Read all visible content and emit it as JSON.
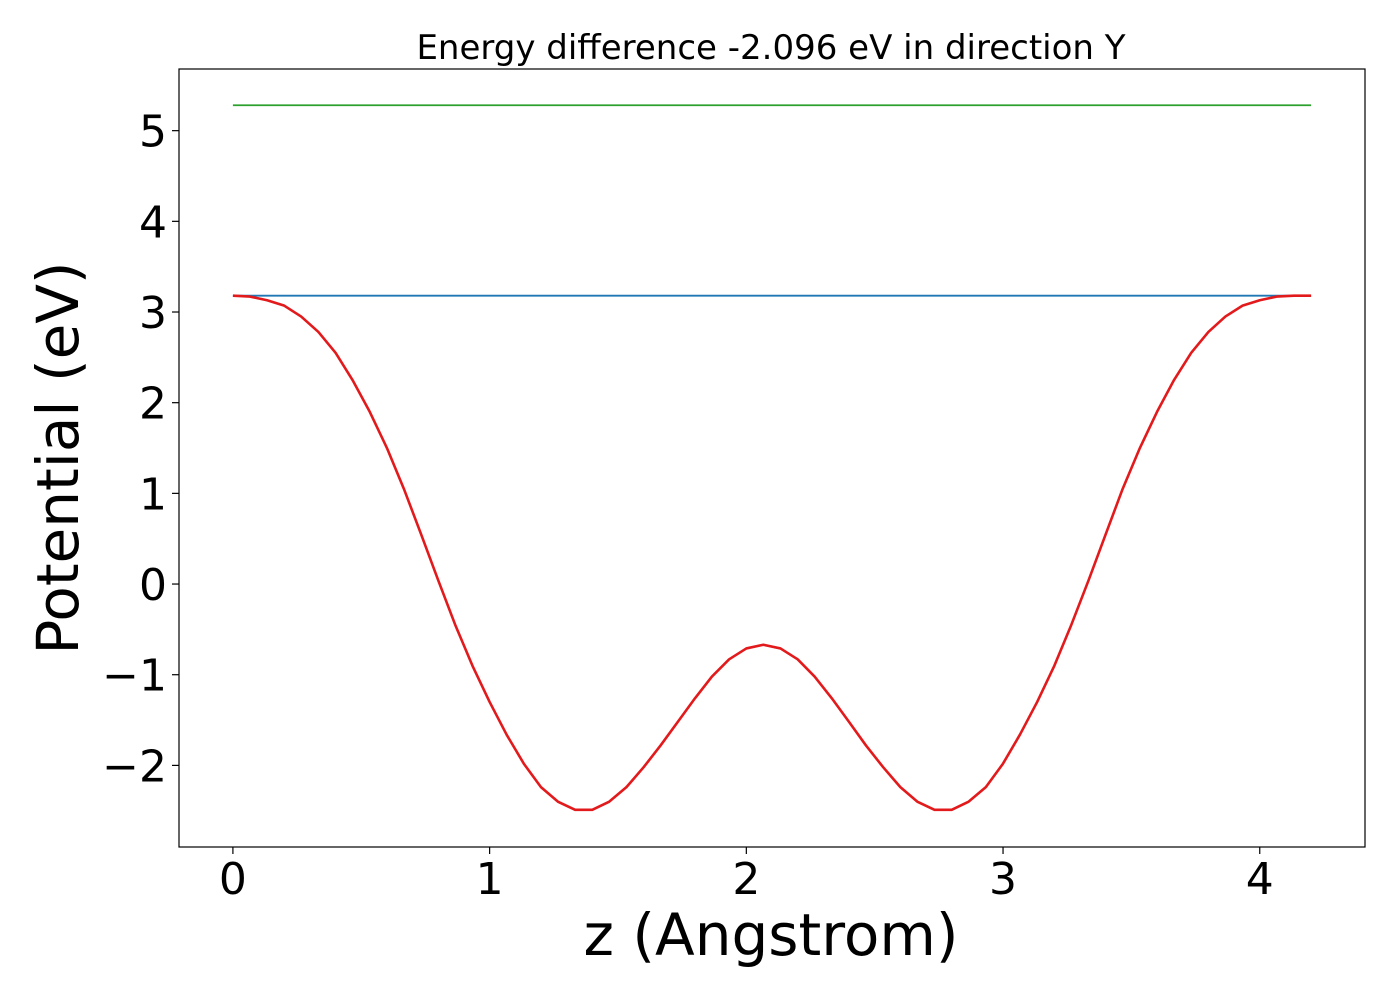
{
  "chart_data": {
    "type": "line",
    "title": "Energy difference -2.096 eV in direction Y",
    "xlabel": "z (Angstrom)",
    "ylabel": "Potential (eV)",
    "xlim": [
      -0.21,
      4.41
    ],
    "ylim": [
      -2.9,
      5.68
    ],
    "xticks": [
      0,
      1,
      2,
      3,
      4
    ],
    "xtick_labels": [
      "0",
      "1",
      "2",
      "3",
      "4"
    ],
    "yticks": [
      -2,
      -1,
      0,
      1,
      2,
      3,
      4,
      5
    ],
    "ytick_labels": [
      "−2",
      "−1",
      "0",
      "1",
      "2",
      "3",
      "4",
      "5"
    ],
    "grid": false,
    "legend": "none",
    "series": [
      {
        "color": "#2ca02c",
        "kind": "hline",
        "x": [
          0.0,
          4.2
        ],
        "y": [
          5.28,
          5.28
        ]
      },
      {
        "color": "#1f77b4",
        "kind": "hline",
        "x": [
          0.0,
          4.2
        ],
        "y": [
          3.18,
          3.18
        ]
      },
      {
        "color": "#e31a1c",
        "kind": "curve",
        "x": [
          0.0,
          0.066,
          0.133,
          0.2,
          0.266,
          0.333,
          0.4,
          0.466,
          0.533,
          0.6,
          0.666,
          0.733,
          0.8,
          0.866,
          0.933,
          1.0,
          1.066,
          1.133,
          1.2,
          1.266,
          1.333,
          1.4,
          1.466,
          1.533,
          1.6,
          1.666,
          1.733,
          1.8,
          1.866,
          1.933,
          2.0,
          2.066,
          2.133,
          2.2,
          2.266,
          2.333,
          2.4,
          2.466,
          2.533,
          2.6,
          2.666,
          2.733,
          2.8,
          2.866,
          2.933,
          3.0,
          3.066,
          3.133,
          3.2,
          3.266,
          3.333,
          3.4,
          3.466,
          3.533,
          3.6,
          3.666,
          3.733,
          3.8,
          3.866,
          3.933,
          4.0,
          4.066,
          4.133,
          4.2
        ],
        "y": [
          3.18,
          3.17,
          3.13,
          3.07,
          2.95,
          2.78,
          2.55,
          2.25,
          1.9,
          1.5,
          1.05,
          0.55,
          0.04,
          -0.45,
          -0.9,
          -1.3,
          -1.66,
          -1.98,
          -2.24,
          -2.4,
          -2.49,
          -2.49,
          -2.4,
          -2.24,
          -2.02,
          -1.78,
          -1.52,
          -1.26,
          -1.02,
          -0.83,
          -0.71,
          -0.67,
          -0.71,
          -0.83,
          -1.02,
          -1.26,
          -1.52,
          -1.78,
          -2.02,
          -2.24,
          -2.4,
          -2.49,
          -2.49,
          -2.4,
          -2.24,
          -1.98,
          -1.66,
          -1.3,
          -0.9,
          -0.45,
          0.04,
          0.55,
          1.05,
          1.5,
          1.9,
          2.25,
          2.55,
          2.78,
          2.95,
          3.07,
          3.13,
          3.17,
          3.18,
          3.18
        ]
      }
    ]
  }
}
